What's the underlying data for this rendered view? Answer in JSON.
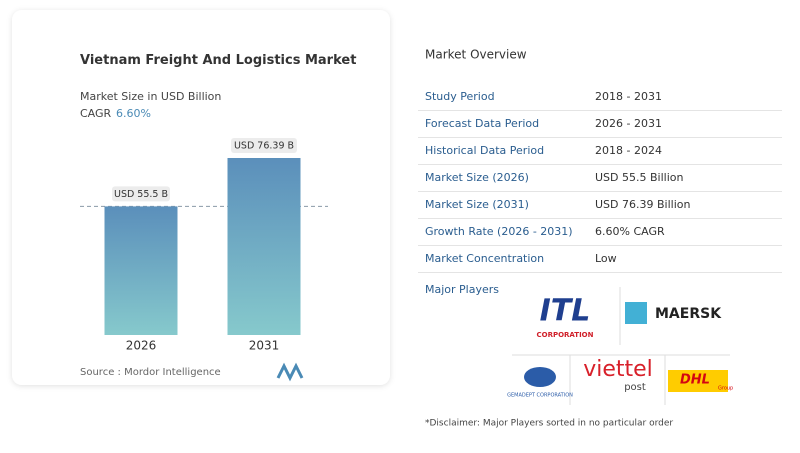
{
  "chart_data": {
    "type": "bar",
    "title": "Vietnam Freight And Logistics Market",
    "subtitle": "Market Size in USD Billion",
    "cagr_label": "CAGR",
    "cagr_value": "6.60%",
    "categories": [
      "2026",
      "2031"
    ],
    "values": [
      55.5,
      76.39
    ],
    "value_labels": [
      "USD 55.5 B",
      "USD 76.39 B"
    ],
    "gradient": [
      "#5b8fbb",
      "#86c9cc"
    ],
    "source": "Source : Mordor Intelligence"
  },
  "overview": {
    "title": "Market Overview",
    "rows": [
      [
        "Study Period",
        "2018 - 2031"
      ],
      [
        "Forecast Data Period",
        "2026 - 2031"
      ],
      [
        "Historical Data Period",
        "2018 - 2024"
      ],
      [
        "Market Size (2026)",
        "USD 55.5 Billion"
      ],
      [
        "Market Size (2031)",
        "USD 76.39 Billion"
      ],
      [
        "Growth Rate (2026 - 2031)",
        "6.60% CAGR"
      ],
      [
        "Market Concentration",
        "Low"
      ]
    ],
    "players_label": "Major Players",
    "players": {
      "itl": "ITL",
      "itl_sub": "CORPORATION",
      "maersk": "MAERSK",
      "gemadept": "GEMADEPT CORPORATION",
      "viettel": "viettel",
      "viettel_sub": "post",
      "dhl": "DHL",
      "dhl_sub": "Group"
    },
    "disclaimer": "*Disclaimer: Major Players sorted in no particular order"
  }
}
